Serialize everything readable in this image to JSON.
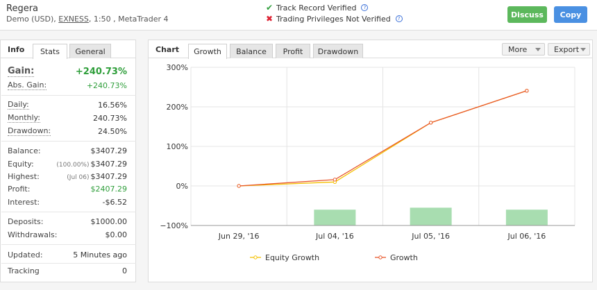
{
  "header": {
    "account_name": "Regera",
    "sub_prefix": "Demo (USD),",
    "broker": "EXNESS",
    "sub_suffix": ", 1:50 , MetaTrader 4",
    "track_record": "Track Record Verified",
    "trading_privileges": "Trading Privileges Not Verified",
    "discuss_label": "Discuss",
    "copy_label": "Copy",
    "colors": {
      "discuss": "#5cb85c",
      "copy": "#4a90e2",
      "verified": "#2e9e3a",
      "not_verified": "#dd2233"
    },
    "icons": [
      "check-icon",
      "x-icon",
      "help-icon"
    ]
  },
  "left_panel": {
    "tab_title": "Info",
    "tabs": [
      "Stats",
      "General"
    ],
    "active_tab": "Stats",
    "gain": {
      "label": "Gain:",
      "value": "+240.73%"
    },
    "abs_gain": {
      "label": "Abs. Gain:",
      "value": "+240.73%"
    },
    "daily": {
      "label": "Daily:",
      "value": "16.56%"
    },
    "monthly": {
      "label": "Monthly:",
      "value": "240.73%"
    },
    "drawdown": {
      "label": "Drawdown:",
      "value": "24.50%"
    },
    "balance": {
      "label": "Balance:",
      "value": "$3407.29"
    },
    "equity": {
      "label": "Equity:",
      "note": "(100.00%)",
      "value": "$3407.29"
    },
    "highest": {
      "label": "Highest:",
      "note": "(Jul 06)",
      "value": "$3407.29"
    },
    "profit": {
      "label": "Profit:",
      "value": "$2407.29"
    },
    "interest": {
      "label": "Interest:",
      "value": "-$6.52"
    },
    "deposits": {
      "label": "Deposits:",
      "value": "$1000.00"
    },
    "withdrawals": {
      "label": "Withdrawals:",
      "value": "$0.00"
    },
    "updated": {
      "label": "Updated:",
      "value": "5 Minutes ago"
    },
    "tracking": {
      "label": "Tracking",
      "value": "0"
    }
  },
  "right_panel": {
    "tab_title": "Chart",
    "tabs": [
      "Growth",
      "Balance",
      "Profit",
      "Drawdown"
    ],
    "active_tab": "Growth",
    "more_label": "More",
    "export_label": "Export"
  },
  "chart_data": {
    "type": "line",
    "categories": [
      "Jun 29, '16",
      "Jul 04, '16",
      "Jul 05, '16",
      "Jul 06, '16"
    ],
    "series": [
      {
        "name": "Equity Growth",
        "values": [
          0,
          10,
          160,
          240.73
        ],
        "color": "#f5c000"
      },
      {
        "name": "Growth",
        "values": [
          0,
          16,
          160,
          240.73
        ],
        "color": "#e8562a"
      }
    ],
    "bars": {
      "values": [
        -60,
        -55,
        -60
      ],
      "categories": [
        "Jul 04, '16",
        "Jul 05, '16",
        "Jul 06, '16"
      ],
      "color": "#a8ddb0"
    },
    "ylim": [
      -100,
      300
    ],
    "yticks": [
      "300%",
      "200%",
      "100%",
      "0%",
      "−100%"
    ],
    "ytick_values": [
      300,
      200,
      100,
      0,
      -100
    ],
    "grid": true,
    "legend_placement": "bottom"
  }
}
